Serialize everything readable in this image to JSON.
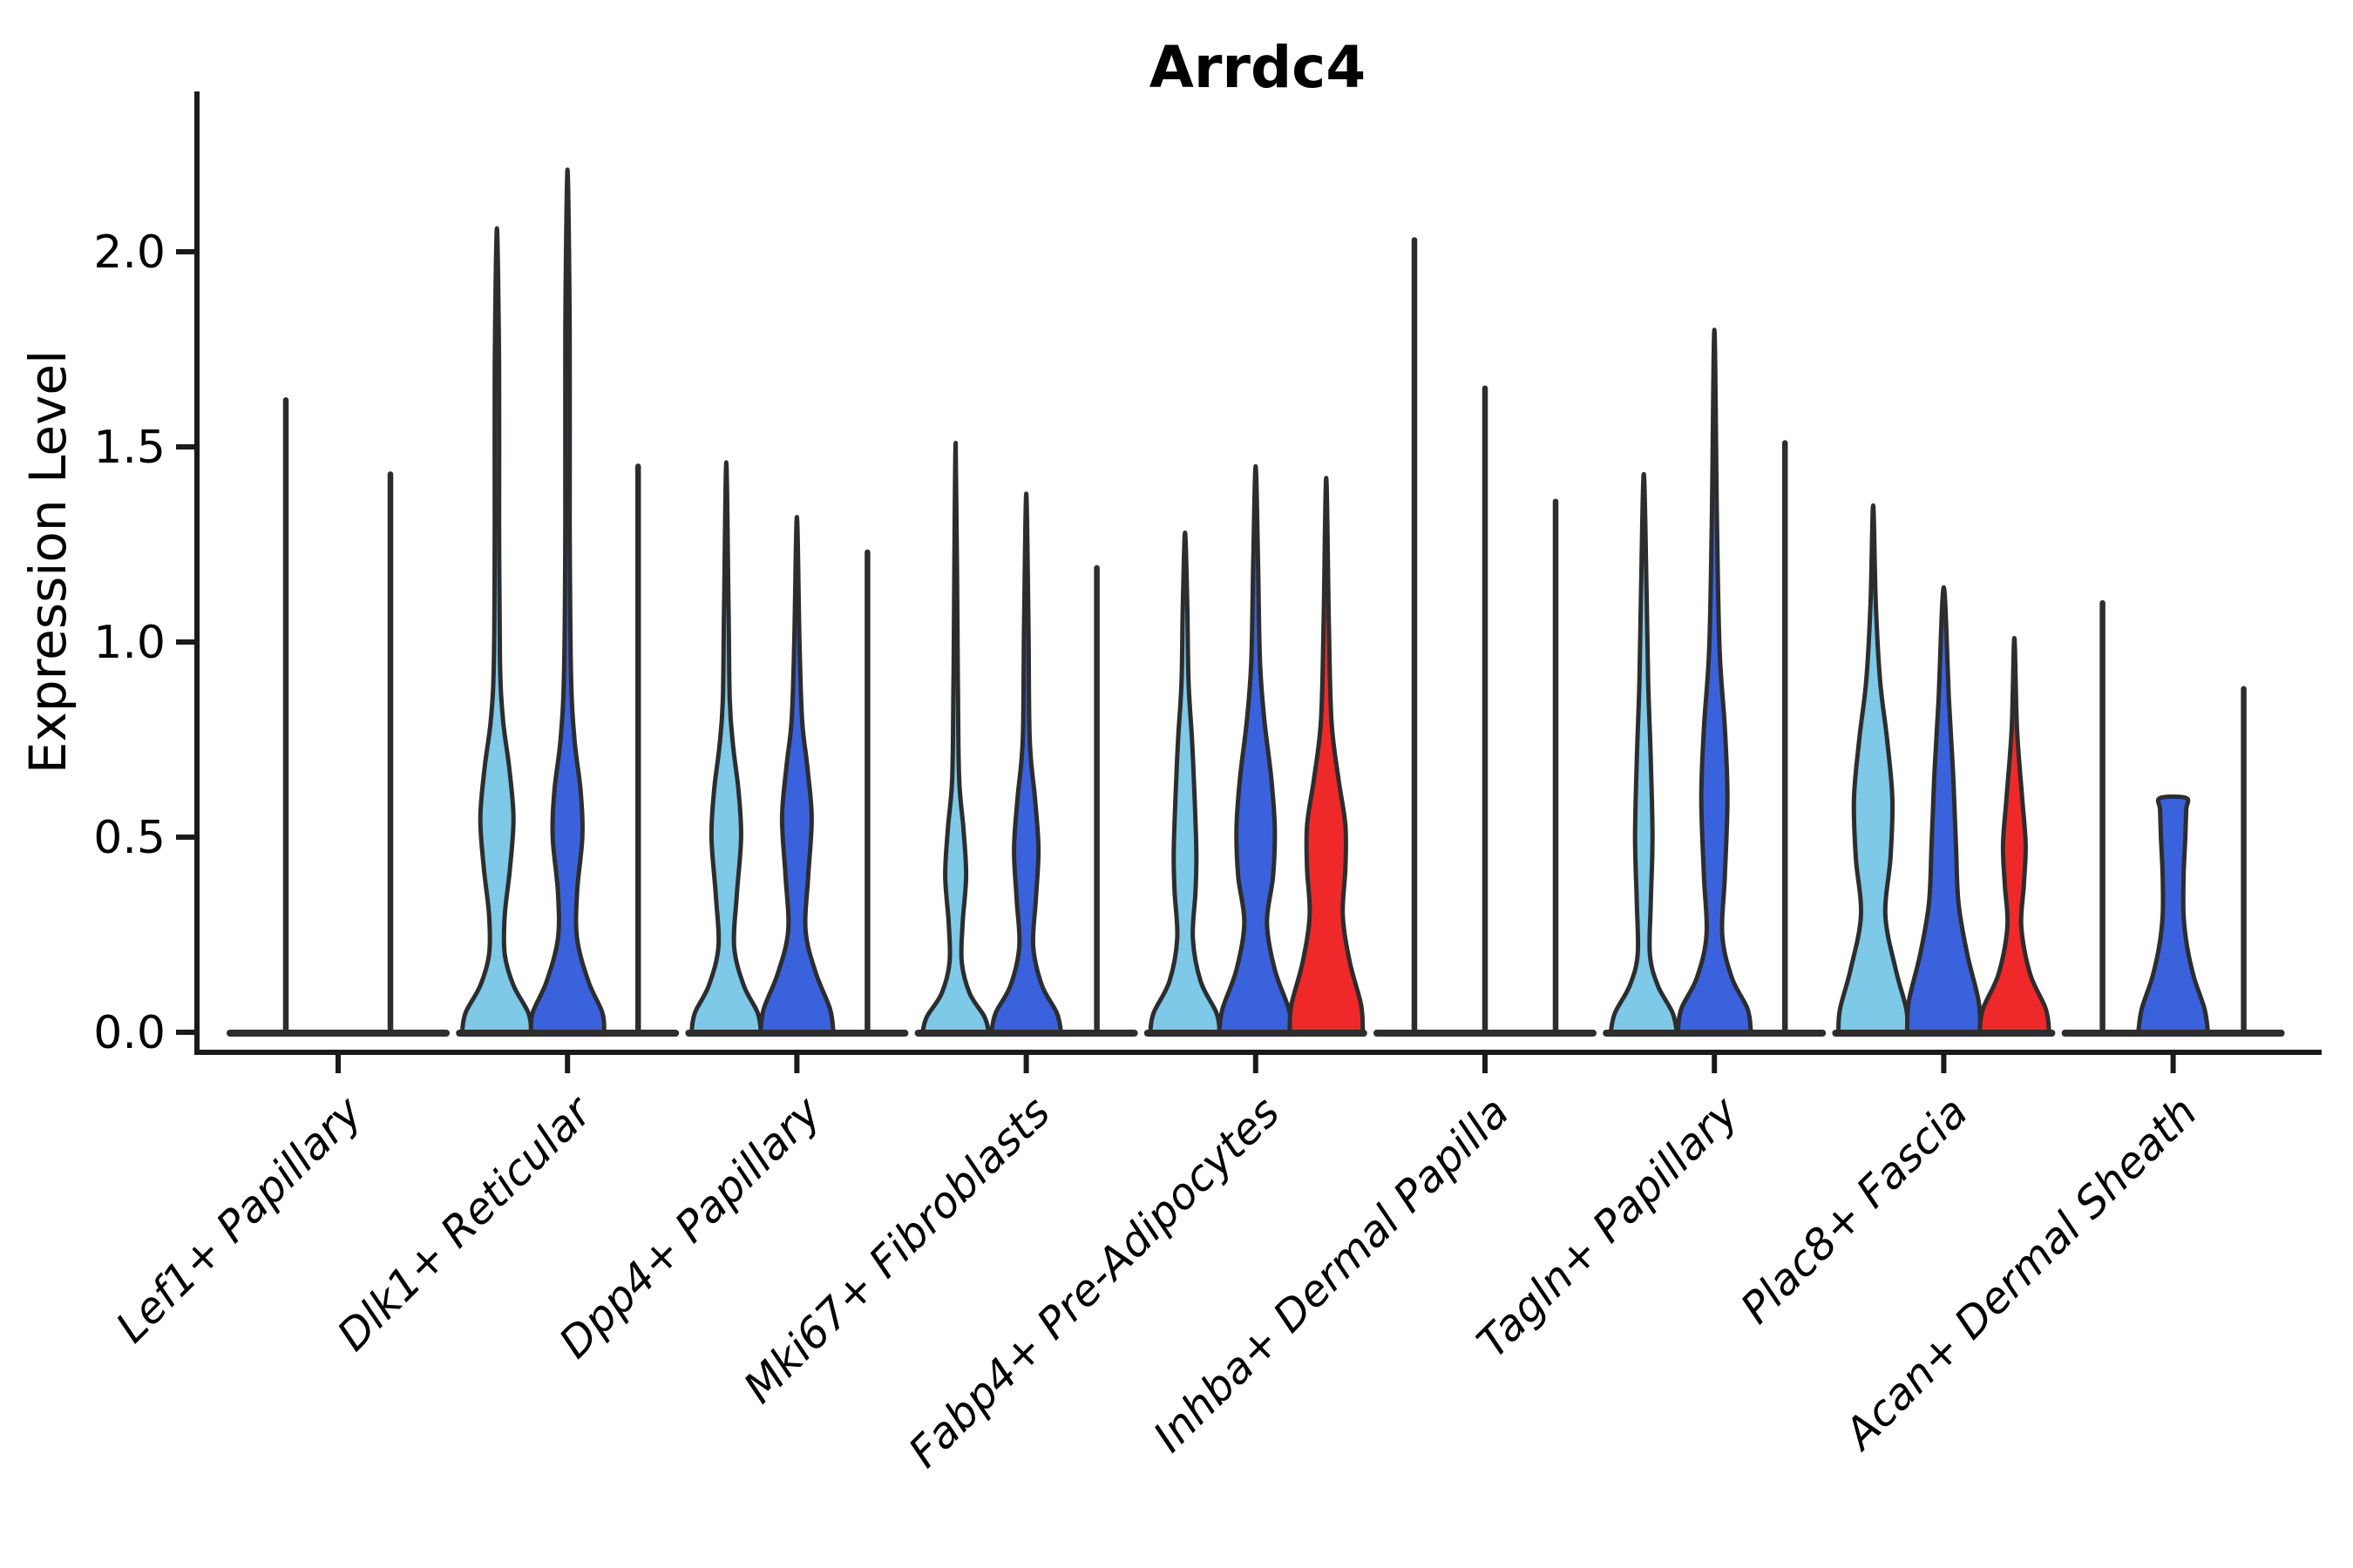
{
  "figure": {
    "title": "Arrdc4",
    "ylabel": "Expression Level"
  },
  "chart_data": {
    "type": "violin",
    "title": "Arrdc4",
    "xlabel": "",
    "ylabel": "Expression Level",
    "grid": false,
    "legend": "none",
    "ylim": [
      -0.07,
      2.41
    ],
    "yticks": [
      "0.0",
      "0.5",
      "1.0",
      "1.5",
      "2.0"
    ],
    "ytick_values": [
      0.0,
      0.5,
      1.0,
      1.5,
      2.0
    ],
    "colors": {
      "c1": "#7EC8E8",
      "c2": "#3A62DC",
      "c3": "#EF2929",
      "collapsed": "#2d2d2d"
    },
    "categories": [
      {
        "label": "Lef1+ Papillary",
        "violins": [
          {
            "color": "c1",
            "max": 1.62,
            "body": false
          },
          {
            "color": "c2",
            "max": 1.43,
            "body": false
          }
        ]
      },
      {
        "label": "Dlk1+ Reticular",
        "violins": [
          {
            "color": "c1",
            "max": 2.06,
            "body": true,
            "profile": [
              [
                0,
                40
              ],
              [
                0.05,
                36
              ],
              [
                0.12,
                19
              ],
              [
                0.2,
                9
              ],
              [
                0.3,
                9
              ],
              [
                0.42,
                15
              ],
              [
                0.55,
                19
              ],
              [
                0.68,
                14
              ],
              [
                0.8,
                7
              ],
              [
                0.95,
                3.5
              ],
              [
                1.3,
                2.5
              ],
              [
                1.7,
                2.5
              ],
              [
                2.06,
                0
              ]
            ]
          },
          {
            "color": "c2",
            "max": 2.21,
            "body": true,
            "profile": [
              [
                0,
                42
              ],
              [
                0.05,
                40
              ],
              [
                0.13,
                24
              ],
              [
                0.24,
                11
              ],
              [
                0.36,
                11
              ],
              [
                0.5,
                17
              ],
              [
                0.62,
                15
              ],
              [
                0.75,
                8
              ],
              [
                0.92,
                4
              ],
              [
                1.3,
                2.5
              ],
              [
                1.8,
                2.5
              ],
              [
                2.21,
                0
              ]
            ]
          },
          {
            "color": "c3",
            "max": 1.45,
            "body": false
          }
        ]
      },
      {
        "label": "Dpp4+ Papillary",
        "violins": [
          {
            "color": "c1",
            "max": 1.46,
            "body": true,
            "profile": [
              [
                0,
                40
              ],
              [
                0.05,
                36
              ],
              [
                0.12,
                20
              ],
              [
                0.22,
                9
              ],
              [
                0.35,
                12
              ],
              [
                0.5,
                17
              ],
              [
                0.62,
                14
              ],
              [
                0.73,
                8
              ],
              [
                0.85,
                4
              ],
              [
                1.1,
                2.5
              ],
              [
                1.46,
                0
              ]
            ]
          },
          {
            "color": "c2",
            "max": 1.32,
            "body": true,
            "profile": [
              [
                0,
                42
              ],
              [
                0.06,
                38
              ],
              [
                0.15,
                22
              ],
              [
                0.26,
                10
              ],
              [
                0.4,
                13
              ],
              [
                0.55,
                17
              ],
              [
                0.68,
                12
              ],
              [
                0.8,
                6
              ],
              [
                1.0,
                3
              ],
              [
                1.32,
                0
              ]
            ]
          },
          {
            "color": "c3",
            "max": 1.23,
            "body": false
          }
        ]
      },
      {
        "label": "Mki67+ Fibroblasts",
        "violins": [
          {
            "color": "c1",
            "max": 1.51,
            "body": true,
            "profile": [
              [
                0,
                38
              ],
              [
                0.04,
                33
              ],
              [
                0.1,
                16
              ],
              [
                0.18,
                7
              ],
              [
                0.28,
                8
              ],
              [
                0.4,
                12
              ],
              [
                0.52,
                9
              ],
              [
                0.65,
                4
              ],
              [
                0.9,
                2.5
              ],
              [
                1.51,
                0
              ]
            ]
          },
          {
            "color": "c2",
            "max": 1.38,
            "body": true,
            "profile": [
              [
                0,
                40
              ],
              [
                0.05,
                35
              ],
              [
                0.12,
                18
              ],
              [
                0.22,
                8
              ],
              [
                0.34,
                11
              ],
              [
                0.47,
                14
              ],
              [
                0.6,
                10
              ],
              [
                0.75,
                4
              ],
              [
                1.05,
                2.5
              ],
              [
                1.38,
                0
              ]
            ]
          },
          {
            "color": "c3",
            "max": 1.19,
            "body": false
          }
        ]
      },
      {
        "label": "Fabp4+ Pre-Adipocytes",
        "violins": [
          {
            "color": "c1",
            "max": 1.28,
            "body": true,
            "profile": [
              [
                0,
                40
              ],
              [
                0.05,
                36
              ],
              [
                0.13,
                18
              ],
              [
                0.24,
                9
              ],
              [
                0.36,
                12
              ],
              [
                0.46,
                13
              ],
              [
                0.6,
                11
              ],
              [
                0.75,
                8
              ],
              [
                0.9,
                4
              ],
              [
                1.1,
                2.5
              ],
              [
                1.28,
                0
              ]
            ]
          },
          {
            "color": "c2",
            "max": 1.45,
            "body": true,
            "profile": [
              [
                0,
                42
              ],
              [
                0.06,
                38
              ],
              [
                0.16,
                22
              ],
              [
                0.28,
                13
              ],
              [
                0.4,
                20
              ],
              [
                0.52,
                22
              ],
              [
                0.65,
                18
              ],
              [
                0.8,
                10
              ],
              [
                0.95,
                5
              ],
              [
                1.2,
                2.8
              ],
              [
                1.45,
                0
              ]
            ]
          },
          {
            "color": "c3",
            "max": 1.42,
            "body": true,
            "profile": [
              [
                0,
                42
              ],
              [
                0.07,
                40
              ],
              [
                0.18,
                27
              ],
              [
                0.3,
                19
              ],
              [
                0.42,
                22
              ],
              [
                0.53,
                22
              ],
              [
                0.65,
                14
              ],
              [
                0.8,
                6
              ],
              [
                1.05,
                3
              ],
              [
                1.42,
                0
              ]
            ]
          }
        ]
      },
      {
        "label": "Inhba+ Dermal Papilla",
        "violins": [
          {
            "color": "c1",
            "max": 2.03,
            "body": false
          },
          {
            "color": "c2",
            "max": 1.65,
            "body": false
          },
          {
            "color": "c3",
            "max": 1.36,
            "body": false
          }
        ]
      },
      {
        "label": "Tagln+ Papillary",
        "violins": [
          {
            "color": "c1",
            "max": 1.43,
            "body": true,
            "profile": [
              [
                0,
                38
              ],
              [
                0.05,
                33
              ],
              [
                0.12,
                16
              ],
              [
                0.2,
                7
              ],
              [
                0.33,
                8
              ],
              [
                0.5,
                10
              ],
              [
                0.7,
                8
              ],
              [
                0.9,
                5
              ],
              [
                1.15,
                3
              ],
              [
                1.43,
                0
              ]
            ]
          },
          {
            "color": "c2",
            "max": 1.8,
            "body": true,
            "profile": [
              [
                0,
                42
              ],
              [
                0.06,
                38
              ],
              [
                0.14,
                20
              ],
              [
                0.25,
                9
              ],
              [
                0.4,
                12
              ],
              [
                0.6,
                15
              ],
              [
                0.78,
                12
              ],
              [
                0.98,
                6
              ],
              [
                1.3,
                3
              ],
              [
                1.8,
                0
              ]
            ]
          },
          {
            "color": "c3",
            "max": 1.51,
            "body": false
          }
        ]
      },
      {
        "label": "Plac8+ Fascia",
        "violins": [
          {
            "color": "c1",
            "max": 1.35,
            "body": true,
            "profile": [
              [
                0,
                40
              ],
              [
                0.06,
                38
              ],
              [
                0.16,
                26
              ],
              [
                0.3,
                14
              ],
              [
                0.45,
                20
              ],
              [
                0.6,
                22
              ],
              [
                0.75,
                16
              ],
              [
                0.9,
                8
              ],
              [
                1.1,
                3
              ],
              [
                1.35,
                0
              ]
            ]
          },
          {
            "color": "c2",
            "max": 1.14,
            "body": true,
            "profile": [
              [
                0,
                42
              ],
              [
                0.08,
                40
              ],
              [
                0.2,
                27
              ],
              [
                0.33,
                17
              ],
              [
                0.48,
                14
              ],
              [
                0.65,
                11
              ],
              [
                0.85,
                6
              ],
              [
                1.14,
                0
              ]
            ]
          },
          {
            "color": "c3",
            "max": 1.01,
            "body": true,
            "profile": [
              [
                0,
                40
              ],
              [
                0.06,
                36
              ],
              [
                0.15,
                18
              ],
              [
                0.27,
                8
              ],
              [
                0.38,
                11
              ],
              [
                0.48,
                13
              ],
              [
                0.6,
                9
              ],
              [
                0.78,
                3
              ],
              [
                1.01,
                0
              ]
            ]
          }
        ]
      },
      {
        "label": "Acan+ Dermal Sheath",
        "violins": [
          {
            "color": "c1",
            "max": 1.1,
            "body": false
          },
          {
            "color": "c2",
            "max": 0.6,
            "body": true,
            "flat_top": true,
            "profile": [
              [
                0,
                40
              ],
              [
                0.06,
                36
              ],
              [
                0.14,
                24
              ],
              [
                0.22,
                16
              ],
              [
                0.3,
                12
              ],
              [
                0.4,
                12
              ],
              [
                0.5,
                14
              ],
              [
                0.57,
                15
              ],
              [
                0.6,
                15
              ]
            ]
          },
          {
            "color": "c3",
            "max": 0.88,
            "body": false
          }
        ]
      }
    ]
  }
}
